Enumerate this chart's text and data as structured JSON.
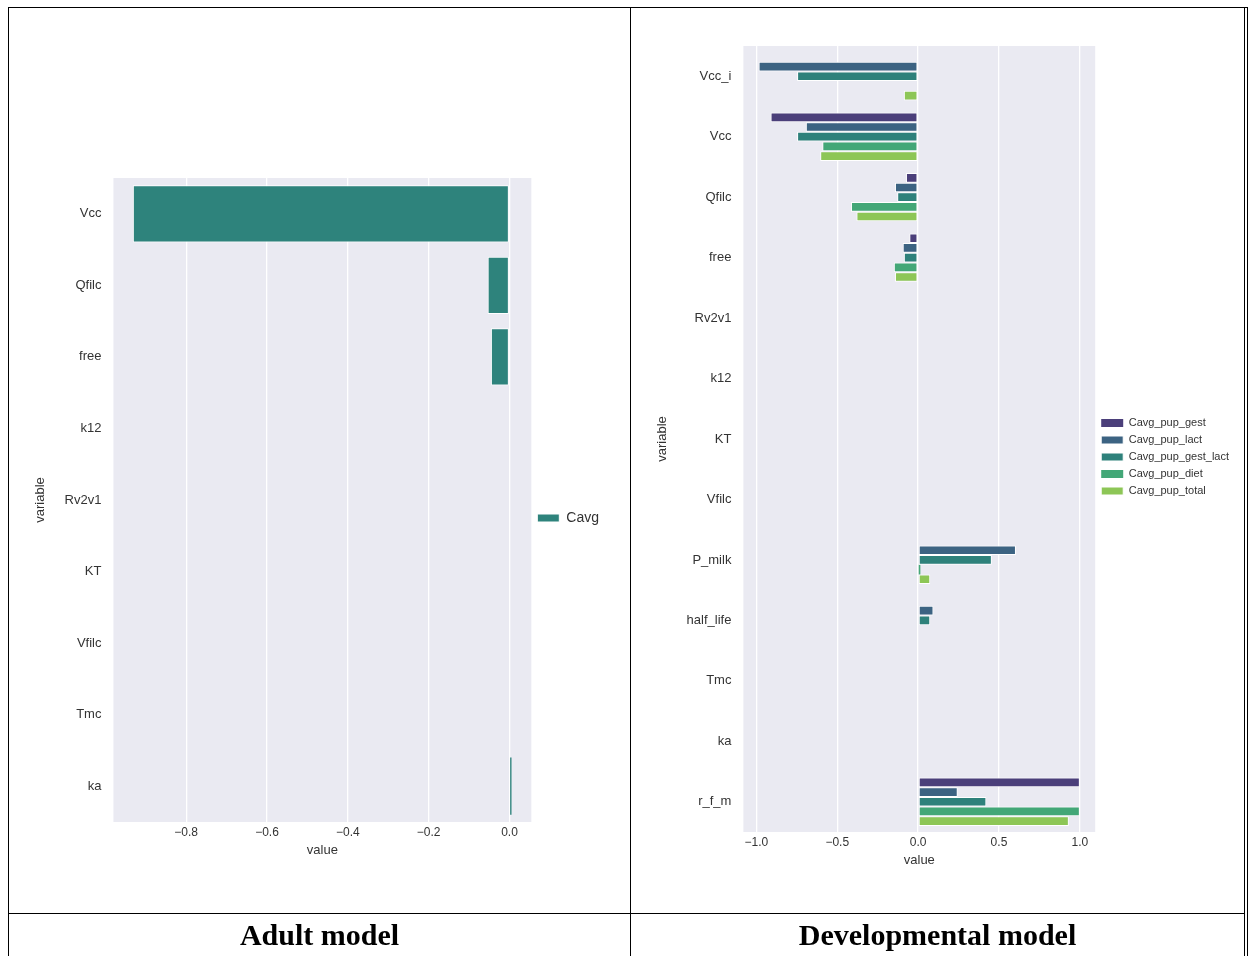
{
  "chart_data": [
    {
      "type": "bar",
      "orientation": "horizontal",
      "title": "Adult model",
      "xlabel": "value",
      "ylabel": "variable",
      "categories": [
        "Vcc",
        "Qfilc",
        "free",
        "k12",
        "Rv2v1",
        "KT",
        "Vfilc",
        "Tmc",
        "ka"
      ],
      "series": [
        {
          "name": "Cavg",
          "color": "#2e837c",
          "values": [
            -0.932,
            -0.054,
            -0.046,
            0,
            0,
            0,
            0,
            0,
            0.005
          ]
        }
      ],
      "xlim": [
        -0.98,
        0.054
      ],
      "xticks": [
        {
          "value": -0.8,
          "label": "−0.8"
        },
        {
          "value": -0.6,
          "label": "−0.6"
        },
        {
          "value": -0.4,
          "label": "−0.4"
        },
        {
          "value": -0.2,
          "label": "−0.2"
        },
        {
          "value": 0,
          "label": "0.0"
        }
      ],
      "grid": "x",
      "legend": "right"
    },
    {
      "type": "bar",
      "orientation": "horizontal",
      "title": "Developmental model",
      "xlabel": "value",
      "ylabel": "variable",
      "categories": [
        "Vcc_i",
        "Vcc",
        "Qfilc",
        "free",
        "Rv2v1",
        "k12",
        "KT",
        "Vfilc",
        "P_milk",
        "half_life",
        "Tmc",
        "ka",
        "r_f_m"
      ],
      "series": [
        {
          "name": "Cavg_pup_gest",
          "color": "#4b3f7a",
          "values": [
            0,
            -0.912,
            -0.075,
            -0.054,
            0,
            0,
            0,
            0,
            0,
            0,
            0,
            0,
            1.0
          ]
        },
        {
          "name": "Cavg_pup_lact",
          "color": "#3c6382",
          "values": [
            -0.986,
            -0.694,
            -0.143,
            -0.095,
            0,
            0,
            0,
            0,
            0.605,
            0.095,
            0,
            null,
            0.245
          ]
        },
        {
          "name": "Cavg_pup_gest_lact",
          "color": "#2e817b",
          "values": [
            -0.748,
            -0.748,
            -0.129,
            -0.088,
            0,
            0,
            0,
            0,
            0.456,
            0.075,
            0,
            null,
            0.422
          ]
        },
        {
          "name": "Cavg_pup_diet",
          "color": "#43a777",
          "values": [
            0,
            -0.592,
            -0.415,
            -0.15,
            0,
            0,
            0,
            0,
            0.014,
            null,
            0,
            null,
            1.0
          ]
        },
        {
          "name": "Cavg_pup_total",
          "color": "#8dc656",
          "values": [
            -0.088,
            -0.605,
            -0.381,
            -0.143,
            0,
            0,
            0,
            0,
            0.075,
            0,
            0,
            0,
            0.932
          ]
        }
      ],
      "xlim": [
        -1.08,
        1.095
      ],
      "xticks": [
        {
          "value": -1,
          "label": "−1.0"
        },
        {
          "value": -0.5,
          "label": "−0.5"
        },
        {
          "value": 0,
          "label": "0.0"
        },
        {
          "value": 0.5,
          "label": "0.5"
        },
        {
          "value": 1,
          "label": "1.0"
        }
      ],
      "grid": "x",
      "legend": "right"
    }
  ]
}
